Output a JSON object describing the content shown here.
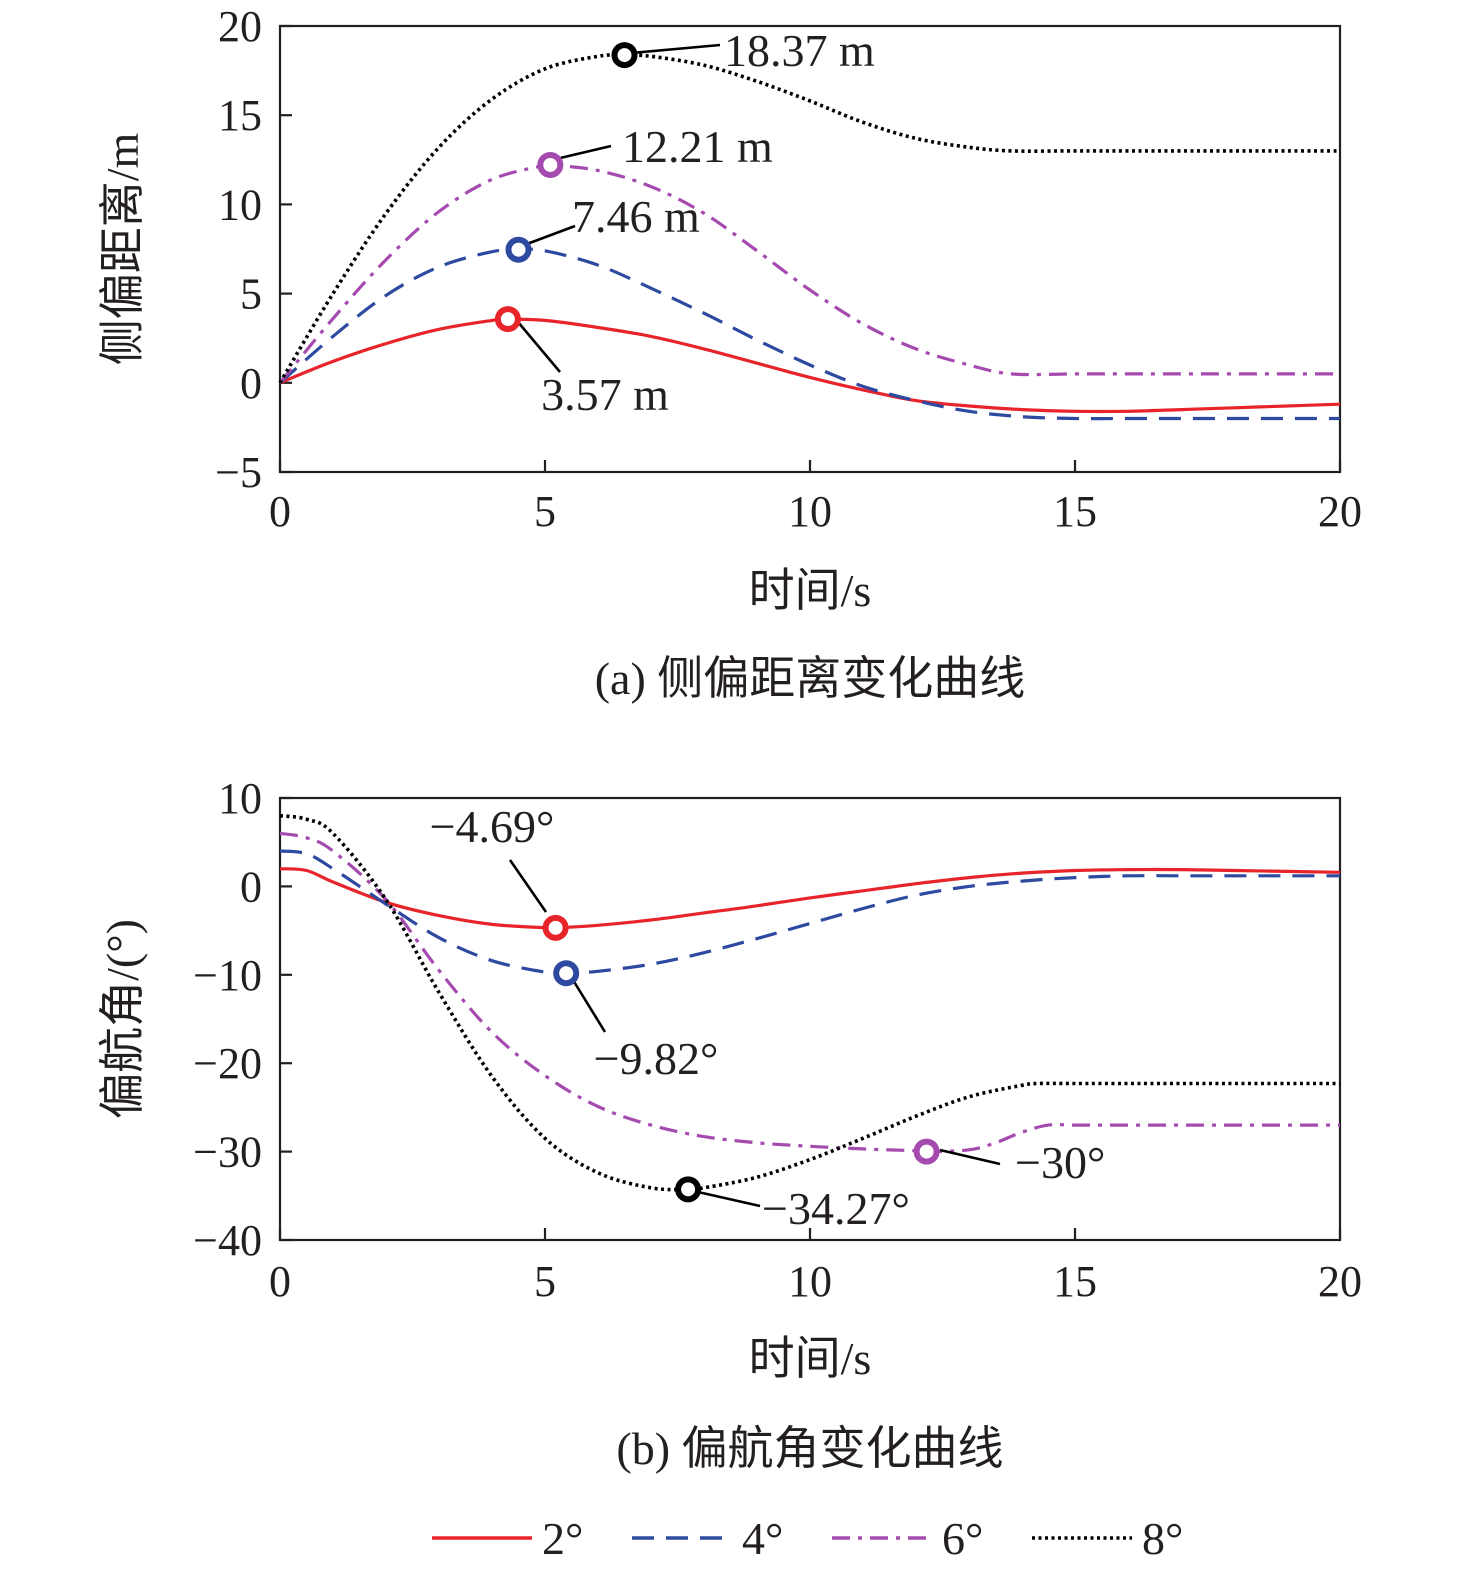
{
  "charts": [
    {
      "id": "lateral",
      "type": "line",
      "caption": "(a) 侧偏距离变化曲线",
      "xlabel": "时间/s",
      "ylabel": "侧偏距离/m",
      "xlim": [
        0,
        20
      ],
      "ylim": [
        -5,
        20
      ],
      "xticks": [
        "0",
        "5",
        "10",
        "15",
        "20"
      ],
      "yticks": [
        "−5",
        "0",
        "5",
        "10",
        "15",
        "20"
      ],
      "series": [
        {
          "name": "2°",
          "x": [
            0,
            1,
            2,
            3,
            4,
            4.3,
            5,
            6,
            7,
            8,
            9,
            10,
            11,
            12,
            13,
            14,
            15,
            16,
            17,
            18,
            19,
            20
          ],
          "y": [
            0,
            1.2,
            2.2,
            3.0,
            3.5,
            3.57,
            3.5,
            3.1,
            2.6,
            1.9,
            1.1,
            0.3,
            -0.4,
            -1.0,
            -1.3,
            -1.5,
            -1.6,
            -1.6,
            -1.5,
            -1.4,
            -1.3,
            -1.2
          ]
        },
        {
          "name": "4°",
          "x": [
            0,
            1,
            2,
            3,
            4,
            4.5,
            5,
            6,
            7,
            8,
            9,
            10,
            11,
            12,
            13,
            14,
            15,
            16,
            17,
            18,
            19,
            20
          ],
          "y": [
            0,
            2.6,
            4.9,
            6.5,
            7.35,
            7.46,
            7.4,
            6.6,
            5.3,
            3.9,
            2.4,
            1.0,
            -0.2,
            -1.0,
            -1.6,
            -1.9,
            -2.0,
            -2.0,
            -2.0,
            -2.0,
            -2.0,
            -2.0
          ]
        },
        {
          "name": "6°",
          "x": [
            0,
            1,
            2,
            3,
            4,
            5,
            5.1,
            6,
            7,
            8,
            9,
            10,
            11,
            12,
            13,
            13.8,
            15,
            16,
            17,
            18,
            19,
            20
          ],
          "y": [
            0,
            3.6,
            6.9,
            9.6,
            11.4,
            12.2,
            12.21,
            11.9,
            11.0,
            9.5,
            7.4,
            5.2,
            3.3,
            1.9,
            1.0,
            0.5,
            0.5,
            0.5,
            0.5,
            0.5,
            0.5,
            0.5
          ]
        },
        {
          "name": "8°",
          "x": [
            0,
            1,
            2,
            3,
            4,
            5,
            6,
            6.5,
            7,
            8,
            9,
            10,
            11,
            12,
            13,
            13.8,
            15,
            16,
            17,
            18,
            19,
            20
          ],
          "y": [
            0,
            5.0,
            9.5,
            13.2,
            15.9,
            17.6,
            18.3,
            18.37,
            18.3,
            17.8,
            16.9,
            15.8,
            14.6,
            13.7,
            13.2,
            13.0,
            13.0,
            13.0,
            13.0,
            13.0,
            13.0,
            13.0
          ]
        }
      ],
      "annotations": [
        {
          "series": "2°",
          "x": 4.3,
          "y": 3.57,
          "label": "3.57 m"
        },
        {
          "series": "4°",
          "x": 4.5,
          "y": 7.46,
          "label": "7.46 m"
        },
        {
          "series": "6°",
          "x": 5.1,
          "y": 12.21,
          "label": "12.21 m"
        },
        {
          "series": "8°",
          "x": 6.5,
          "y": 18.37,
          "label": "18.37 m"
        }
      ]
    },
    {
      "id": "yaw",
      "type": "line",
      "caption": "(b) 偏航角变化曲线",
      "xlabel": "时间/s",
      "ylabel": "偏航角/(°)",
      "xlim": [
        0,
        20
      ],
      "ylim": [
        -40,
        10
      ],
      "xticks": [
        "0",
        "5",
        "10",
        "15",
        "20"
      ],
      "yticks": [
        "−40",
        "−30",
        "−20",
        "−10",
        "0",
        "10"
      ],
      "series": [
        {
          "name": "2°",
          "x": [
            0,
            0.5,
            1,
            2,
            3,
            4,
            5,
            5.2,
            6,
            7,
            8,
            9,
            10,
            11,
            12,
            13,
            14,
            15,
            16,
            17,
            18,
            19,
            20
          ],
          "y": [
            2,
            1.8,
            0.5,
            -1.8,
            -3.3,
            -4.3,
            -4.67,
            -4.69,
            -4.4,
            -3.8,
            -3.0,
            -2.2,
            -1.3,
            -0.5,
            0.3,
            1.0,
            1.5,
            1.8,
            1.9,
            1.9,
            1.8,
            1.7,
            1.6
          ]
        },
        {
          "name": "4°",
          "x": [
            0,
            0.5,
            1,
            2,
            3,
            4,
            5,
            5.4,
            6,
            7,
            8,
            9,
            10,
            11,
            12,
            13,
            14,
            15,
            16,
            17,
            18,
            19,
            20
          ],
          "y": [
            4,
            3.7,
            2,
            -2.0,
            -5.8,
            -8.4,
            -9.7,
            -9.82,
            -9.6,
            -8.8,
            -7.5,
            -5.9,
            -4.2,
            -2.5,
            -1.0,
            0.0,
            0.6,
            1.0,
            1.2,
            1.2,
            1.2,
            1.2,
            1.2
          ]
        },
        {
          "name": "6°",
          "x": [
            0,
            0.5,
            1,
            2,
            3,
            4,
            5,
            6,
            7,
            8,
            9,
            10,
            11,
            12,
            12.2,
            13,
            13.5,
            14,
            14.5,
            15,
            16,
            17,
            18,
            19,
            20
          ],
          "y": [
            6,
            5.5,
            4,
            -1.5,
            -9.5,
            -16.5,
            -21.4,
            -24.9,
            -27.0,
            -28.3,
            -29.0,
            -29.4,
            -29.7,
            -29.9,
            -30.0,
            -29.8,
            -29.0,
            -27.8,
            -27.0,
            -27.0,
            -27.0,
            -27.0,
            -27.0,
            -27.0,
            -27.0
          ]
        },
        {
          "name": "8°",
          "x": [
            0,
            0.5,
            1,
            2,
            3,
            4,
            5,
            6,
            7,
            7.7,
            8,
            9,
            10,
            11,
            12,
            13,
            14,
            14.3,
            15,
            16,
            17,
            18,
            19,
            20
          ],
          "y": [
            8,
            7.6,
            6,
            -1.5,
            -12,
            -21.5,
            -28.5,
            -32.4,
            -34.1,
            -34.27,
            -34.1,
            -32.9,
            -30.9,
            -28.5,
            -26.0,
            -23.8,
            -22.5,
            -22.3,
            -22.3,
            -22.3,
            -22.3,
            -22.3,
            -22.3,
            -22.3
          ]
        }
      ],
      "annotations": [
        {
          "series": "2°",
          "x": 5.2,
          "y": -4.69,
          "label": "−4.69°"
        },
        {
          "series": "4°",
          "x": 5.4,
          "y": -9.82,
          "label": "−9.82°"
        },
        {
          "series": "6°",
          "x": 12.2,
          "y": -30,
          "label": "−30°"
        },
        {
          "series": "8°",
          "x": 7.7,
          "y": -34.27,
          "label": "−34.27°"
        }
      ]
    }
  ],
  "legend": [
    {
      "label": "2°",
      "color": "#e8242b",
      "dash": "solid"
    },
    {
      "label": "4°",
      "color": "#2e4aa0",
      "dash": "dashed"
    },
    {
      "label": "6°",
      "color": "#a54bb0",
      "dash": "dashdot"
    },
    {
      "label": "8°",
      "color": "#000000",
      "dash": "dotted"
    }
  ],
  "colors": {
    "axis": "#231f20",
    "2°": "#e8242b",
    "4°": "#2e4aa0",
    "6°": "#a54bb0",
    "8°": "#000000"
  }
}
